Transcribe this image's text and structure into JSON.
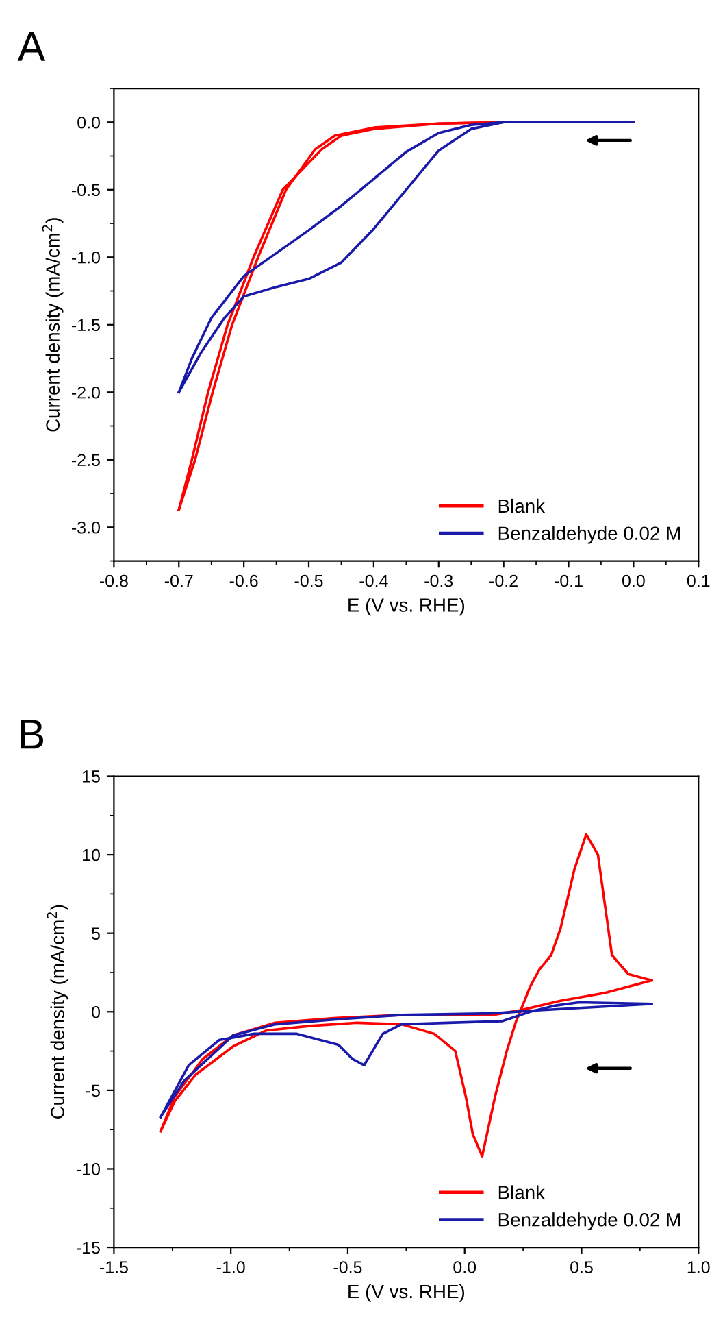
{
  "chart_data": [
    {
      "type": "line",
      "title": "A",
      "xlabel": "E (V vs. RHE)",
      "ylabel": "Current density (mA/cm$^{2}$)",
      "xlim": [
        -0.8,
        0.1
      ],
      "ylim": [
        -3.25,
        0.25
      ],
      "xticks": [
        -0.8,
        -0.7,
        -0.6,
        -0.5,
        -0.4,
        -0.3,
        -0.2,
        -0.1,
        {
          "value": 0,
          "label": "0.0"
        },
        0.1
      ],
      "yticks": [
        {
          "value": -3,
          "label": "-3.0"
        },
        -2.5,
        {
          "value": -2,
          "label": "-2.0"
        },
        -1.5,
        {
          "value": -1,
          "label": "-1.0"
        },
        -0.5,
        {
          "value": 0,
          "label": "0.0"
        }
      ],
      "grid": false,
      "legend": "bottom right",
      "marker": "none",
      "line_style": "solid",
      "series": [
        {
          "name": "Blank",
          "color": "#ff0000",
          "x": [
            0.0,
            -0.2,
            -0.3,
            -0.4,
            -0.45,
            -0.48,
            -0.54,
            -0.585,
            -0.625,
            -0.655,
            -0.68,
            -0.7
          ],
          "values": [
            0.0,
            0.0,
            -0.01,
            -0.05,
            -0.1,
            -0.2,
            -0.5,
            -1.0,
            -1.5,
            -2.0,
            -2.5,
            -2.87
          ]
        },
        {
          "color": "#ff0000",
          "x": [
            -0.7,
            -0.675,
            -0.648,
            -0.618,
            -0.578,
            -0.535,
            -0.49,
            -0.46,
            -0.4,
            -0.3,
            -0.2
          ],
          "values": [
            -2.87,
            -2.5,
            -2.0,
            -1.5,
            -1.0,
            -0.5,
            -0.2,
            -0.1,
            -0.04,
            -0.01,
            0.0
          ]
        },
        {
          "name": "Benzaldehyde 0.02 M",
          "color": "#1a1aaa",
          "x": [
            0.0,
            -0.2,
            -0.25,
            -0.3,
            -0.35,
            -0.4,
            -0.45,
            -0.5,
            -0.55,
            -0.6,
            -0.63,
            -0.665,
            -0.7
          ],
          "values": [
            0.0,
            0.0,
            -0.05,
            -0.21,
            -0.5,
            -0.79,
            -1.04,
            -1.16,
            -1.22,
            -1.29,
            -1.45,
            -1.7,
            -2.0
          ]
        },
        {
          "color": "#1a1aaa",
          "x": [
            -0.7,
            -0.68,
            -0.65,
            -0.6,
            -0.55,
            -0.5,
            -0.45,
            -0.4,
            -0.35,
            -0.3,
            -0.25,
            -0.2
          ],
          "values": [
            -2.0,
            -1.75,
            -1.45,
            -1.14,
            -0.97,
            -0.8,
            -0.62,
            -0.42,
            -0.22,
            -0.08,
            -0.02,
            0.0
          ]
        }
      ]
    },
    {
      "type": "line",
      "title": "B",
      "xlabel": "E (V vs. RHE)",
      "ylabel": "Current density (mA/cm$^{2}$)",
      "xlim": [
        -1.5,
        1.0
      ],
      "ylim": [
        -15,
        15
      ],
      "xticks": [
        {
          "value": -1.5,
          "label": "-1.5"
        },
        {
          "value": -1.0,
          "label": "-1.0"
        },
        {
          "value": -0.5,
          "label": "-0.5"
        },
        {
          "value": 0.0,
          "label": "0.0"
        },
        {
          "value": 0.5,
          "label": "0.5"
        },
        {
          "value": 1.0,
          "label": "1.0"
        }
      ],
      "yticks": [
        -15,
        -10,
        -5,
        0,
        5,
        10,
        15
      ],
      "grid": false,
      "legend": "bottom right",
      "marker": "none",
      "line_style": "solid",
      "series": [
        {
          "name": "Blank",
          "color": "#ff0000",
          "x": [
            0.8,
            0.6,
            0.41,
            0.24,
            0.22,
            0.18,
            0.13,
            0.075,
            0.035,
            0.005,
            -0.04,
            -0.13,
            -0.27,
            -0.46,
            -0.66,
            -0.85,
            -0.99,
            -1.15,
            -1.24,
            -1.3
          ],
          "values": [
            2.0,
            1.2,
            0.7,
            0.1,
            -0.6,
            -2.5,
            -5.4,
            -9.2,
            -7.8,
            -5.4,
            -2.5,
            -1.4,
            -0.8,
            -0.7,
            -0.9,
            -1.2,
            -2.2,
            -4.0,
            -5.7,
            -7.6
          ]
        },
        {
          "color": "#ff0000",
          "x": [
            -1.3,
            -1.24,
            -1.12,
            -0.99,
            -0.81,
            -0.56,
            -0.27,
            0.12,
            0.24,
            0.28,
            0.32,
            0.37,
            0.41,
            0.47,
            0.52,
            0.57,
            0.6,
            0.63,
            0.7,
            0.8
          ],
          "values": [
            -7.6,
            -5.4,
            -3.0,
            -1.5,
            -0.7,
            -0.4,
            -0.2,
            -0.2,
            0.1,
            1.6,
            2.7,
            3.6,
            5.3,
            9.1,
            11.3,
            10.0,
            6.8,
            3.6,
            2.4,
            2.0
          ]
        },
        {
          "name": "Benzaldehyde 0.02 M",
          "color": "#1a1aaa",
          "x": [
            0.8,
            0.49,
            0.39,
            0.28,
            0.16,
            -0.07,
            -0.27,
            -0.35,
            -0.43,
            -0.48,
            -0.54,
            -0.72,
            -0.9,
            -1.05,
            -1.18,
            -1.3
          ],
          "values": [
            0.5,
            0.6,
            0.4,
            0.0,
            -0.6,
            -0.7,
            -0.8,
            -1.4,
            -3.4,
            -3.0,
            -2.1,
            -1.4,
            -1.4,
            -1.8,
            -3.4,
            -6.7
          ]
        },
        {
          "color": "#1a1aaa",
          "x": [
            -1.3,
            -1.2,
            -0.99,
            -0.81,
            -0.56,
            -0.27,
            0.12,
            0.32,
            0.8
          ],
          "values": [
            -6.7,
            -4.4,
            -1.5,
            -0.8,
            -0.5,
            -0.2,
            -0.1,
            0.1,
            0.5
          ]
        }
      ]
    }
  ]
}
